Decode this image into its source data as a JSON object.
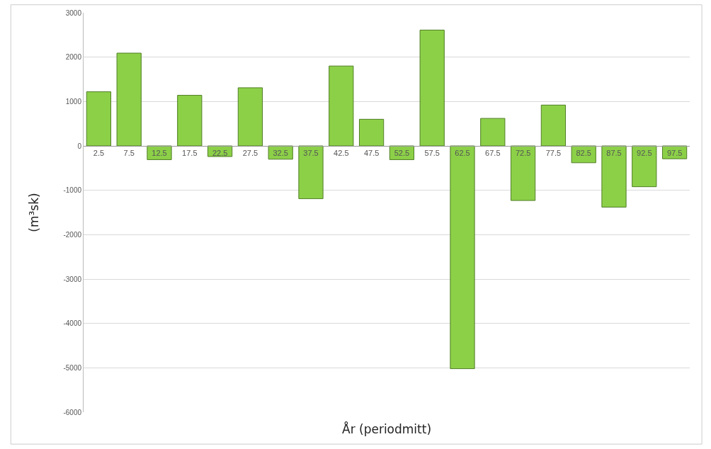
{
  "chart_data": {
    "type": "bar",
    "xlabel": "År (periodmitt)",
    "ylabel": "(m³sk)",
    "categories": [
      "2.5",
      "7.5",
      "12.5",
      "17.5",
      "22.5",
      "27.5",
      "32.5",
      "37.5",
      "42.5",
      "47.5",
      "52.5",
      "57.5",
      "62.5",
      "67.5",
      "72.5",
      "77.5",
      "82.5",
      "87.5",
      "92.5",
      "97.5"
    ],
    "values": [
      1220,
      2090,
      -310,
      1140,
      -240,
      1310,
      -300,
      -1190,
      1800,
      600,
      -310,
      2610,
      -5020,
      620,
      -1230,
      920,
      -380,
      -1380,
      -920,
      -290
    ],
    "color": "#8cd048",
    "ylim": [
      -6000,
      3000
    ],
    "yticks": [
      -6000,
      -5000,
      -4000,
      -3000,
      -2000,
      -1000,
      0,
      1000,
      2000,
      3000
    ],
    "grid": "y"
  }
}
